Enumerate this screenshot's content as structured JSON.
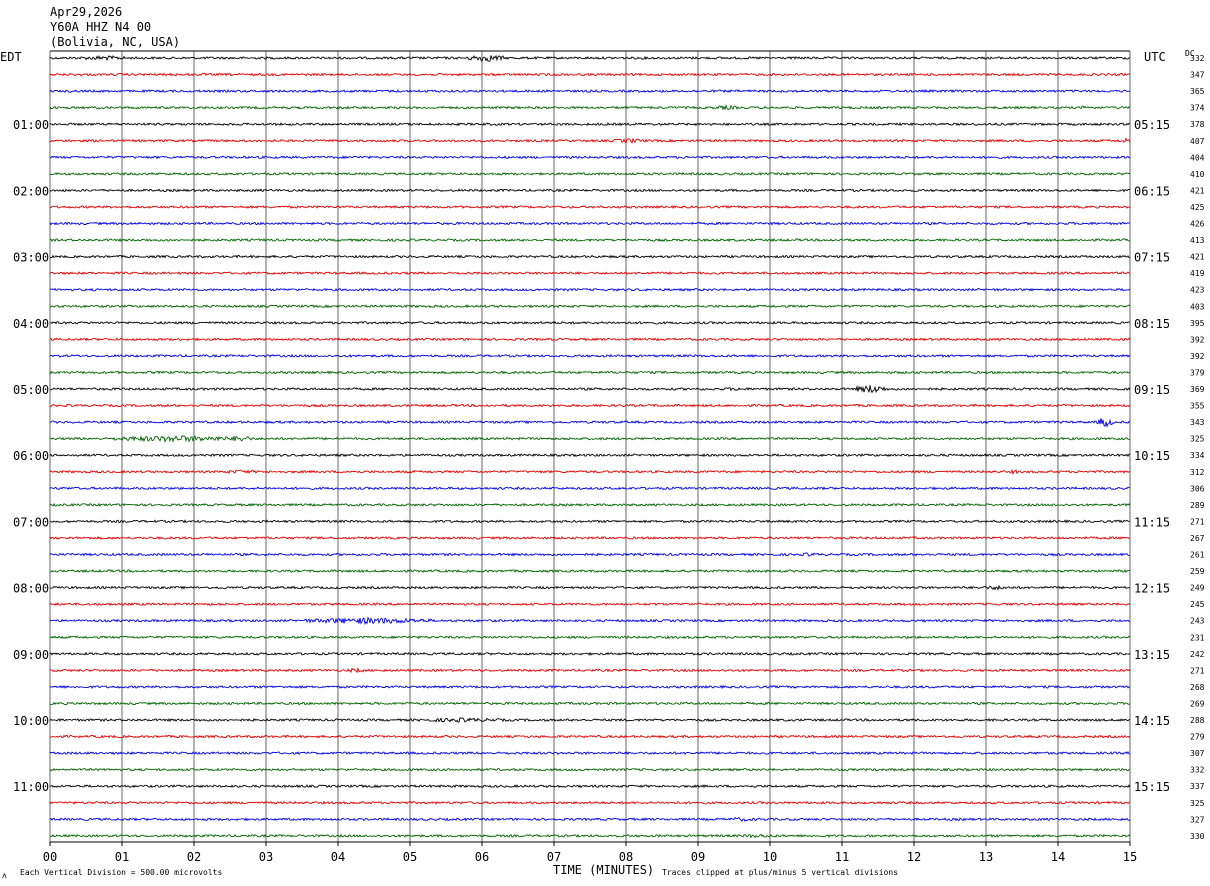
{
  "header": {
    "date": "Apr29,2026",
    "station": "Y60A HHZ N4 00",
    "location": "(Bolivia, NC, USA)"
  },
  "left_label": "EDT",
  "right_label": "UTC",
  "dc_header": "DC",
  "footer": {
    "scale_note": "Each Vertical Division =  500.00 microvolts",
    "xlabel": "TIME (MINUTES)",
    "clip_note": "Traces clipped at plus/minus 5 vertical divisions",
    "corner_mark": "ʌ"
  },
  "colors": {
    "trace_cycle": [
      "#000000",
      "#e00000",
      "#0000e0",
      "#006400"
    ],
    "grid": "#000000"
  },
  "chart_data": {
    "type": "line",
    "title": "Apr29,2026 Y60A HHZ N4 00 (Bolivia, NC, USA)",
    "xlabel": "TIME (MINUTES)",
    "ylabel": "",
    "xlim": [
      0,
      15
    ],
    "x_ticks": [
      "00",
      "01",
      "02",
      "03",
      "04",
      "05",
      "06",
      "07",
      "08",
      "09",
      "10",
      "11",
      "12",
      "13",
      "14",
      "15"
    ],
    "row_minutes": 15,
    "rows": 48,
    "edt_labels": [
      {
        "row": 4,
        "text": "01:00"
      },
      {
        "row": 8,
        "text": "02:00"
      },
      {
        "row": 12,
        "text": "03:00"
      },
      {
        "row": 16,
        "text": "04:00"
      },
      {
        "row": 20,
        "text": "05:00"
      },
      {
        "row": 24,
        "text": "06:00"
      },
      {
        "row": 28,
        "text": "07:00"
      },
      {
        "row": 32,
        "text": "08:00"
      },
      {
        "row": 36,
        "text": "09:00"
      },
      {
        "row": 40,
        "text": "10:00"
      },
      {
        "row": 44,
        "text": "11:00"
      }
    ],
    "utc_labels": [
      {
        "row": 4,
        "text": "05:15"
      },
      {
        "row": 8,
        "text": "06:15"
      },
      {
        "row": 12,
        "text": "07:15"
      },
      {
        "row": 16,
        "text": "08:15"
      },
      {
        "row": 20,
        "text": "09:15"
      },
      {
        "row": 24,
        "text": "10:15"
      },
      {
        "row": 28,
        "text": "11:15"
      },
      {
        "row": 32,
        "text": "12:15"
      },
      {
        "row": 36,
        "text": "13:15"
      },
      {
        "row": 40,
        "text": "14:15"
      },
      {
        "row": 44,
        "text": "15:15"
      }
    ],
    "dc_values": [
      "332",
      "347",
      "365",
      "374",
      "378",
      "407",
      "404",
      "410",
      "421",
      "425",
      "426",
      "413",
      "421",
      "419",
      "423",
      "403",
      "395",
      "392",
      "392",
      "379",
      "369",
      "355",
      "343",
      "325",
      "334",
      "312",
      "306",
      "289",
      "271",
      "267",
      "261",
      "259",
      "249",
      "245",
      "243",
      "231",
      "242",
      "271",
      "268",
      "269",
      "288",
      "279",
      "307",
      "332",
      "337",
      "325",
      "327",
      "330"
    ],
    "events": [
      {
        "row": 0,
        "start_min": 0.4,
        "end_min": 1.1,
        "amp": 2.2
      },
      {
        "row": 0,
        "start_min": 5.8,
        "end_min": 6.3,
        "amp": 3.5
      },
      {
        "row": 3,
        "start_min": 9.2,
        "end_min": 9.6,
        "amp": 2.0
      },
      {
        "row": 3,
        "start_min": 14.3,
        "end_min": 14.5,
        "amp": 2.0
      },
      {
        "row": 5,
        "start_min": 7.8,
        "end_min": 8.3,
        "amp": 2.2
      },
      {
        "row": 5,
        "start_min": 14.9,
        "end_min": 15.0,
        "amp": 3.5
      },
      {
        "row": 20,
        "start_min": 9.3,
        "end_min": 9.7,
        "amp": 1.6
      },
      {
        "row": 20,
        "start_min": 11.2,
        "end_min": 11.6,
        "amp": 4.0
      },
      {
        "row": 22,
        "start_min": 14.55,
        "end_min": 14.75,
        "amp": 5.0
      },
      {
        "row": 23,
        "start_min": 0.9,
        "end_min": 2.6,
        "amp": 3.0
      },
      {
        "row": 23,
        "start_min": 2.5,
        "end_min": 2.8,
        "amp": 3.0
      },
      {
        "row": 25,
        "start_min": 2.3,
        "end_min": 3.0,
        "amp": 1.8
      },
      {
        "row": 25,
        "start_min": 13.35,
        "end_min": 13.45,
        "amp": 2.5
      },
      {
        "row": 30,
        "start_min": 10.4,
        "end_min": 10.7,
        "amp": 1.8
      },
      {
        "row": 32,
        "start_min": 12.9,
        "end_min": 13.4,
        "amp": 2.0
      },
      {
        "row": 34,
        "start_min": 3.5,
        "end_min": 5.3,
        "amp": 3.0
      },
      {
        "row": 37,
        "start_min": 4.1,
        "end_min": 4.4,
        "amp": 2.0
      },
      {
        "row": 40,
        "start_min": 5.0,
        "end_min": 6.4,
        "amp": 2.0
      },
      {
        "row": 46,
        "start_min": 9.4,
        "end_min": 9.8,
        "amp": 2.0
      },
      {
        "row": 47,
        "start_min": 9.5,
        "end_min": 10.2,
        "amp": 1.8
      }
    ],
    "grid": true
  }
}
